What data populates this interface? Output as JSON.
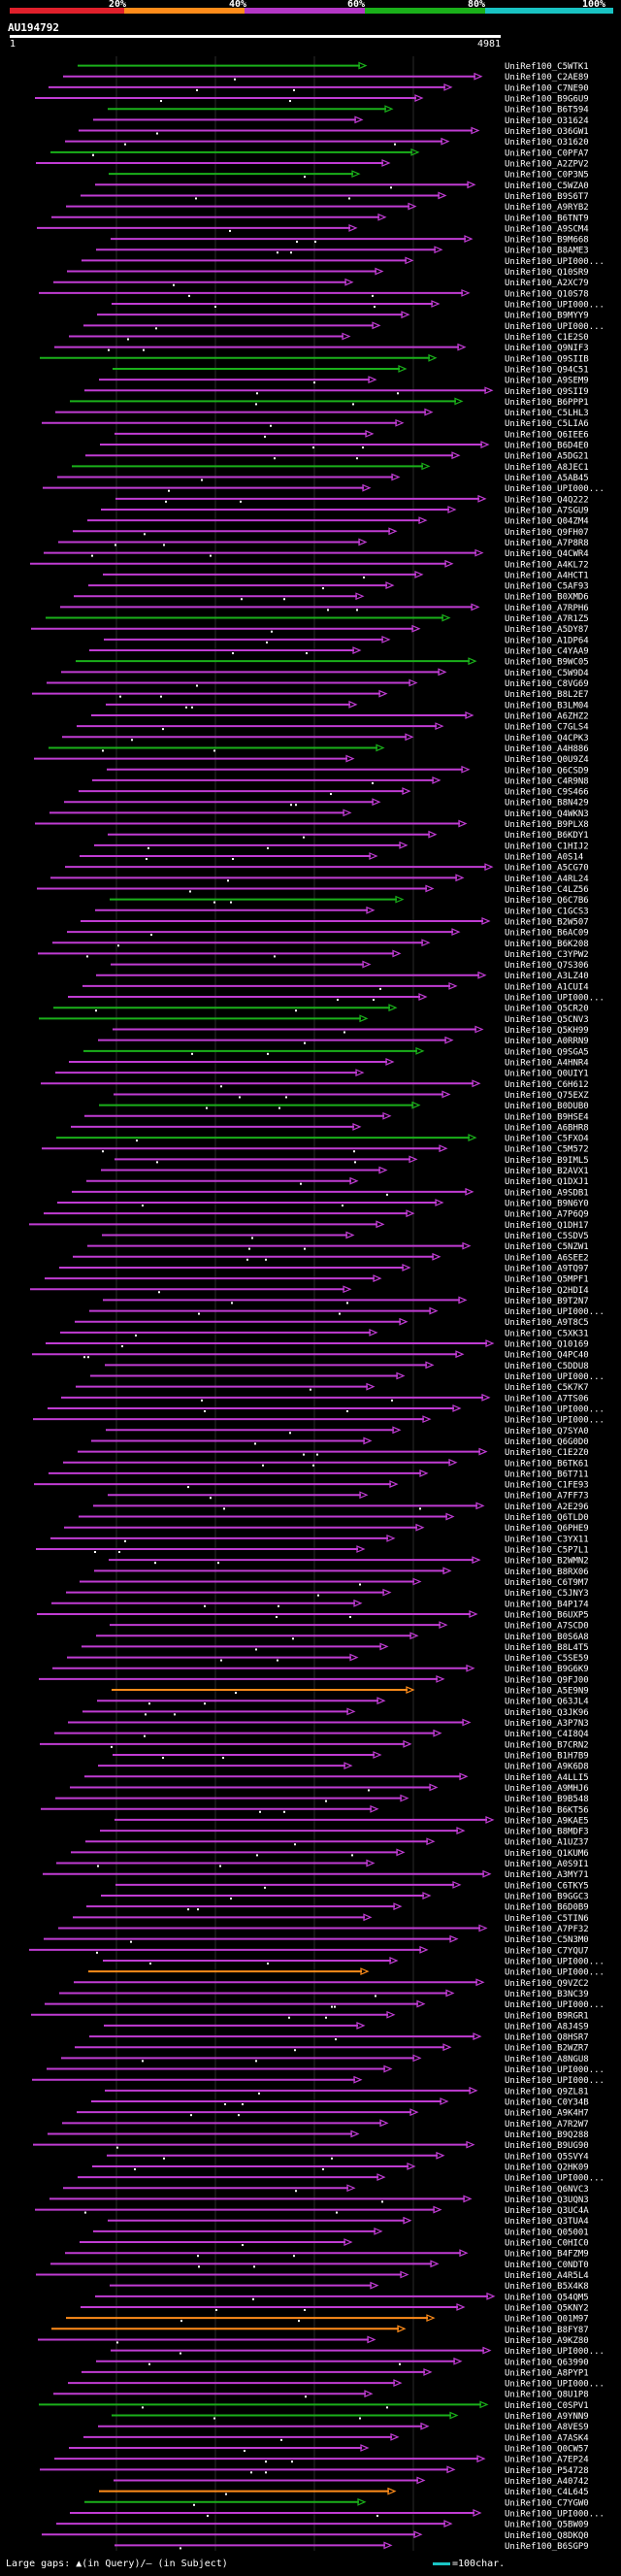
{
  "legend": {
    "labels": [
      "20%",
      "40%",
      "60%",
      "80%",
      "100%"
    ],
    "colors": [
      "#e0202b",
      "#ff8c1a",
      "#b437c6",
      "#1ab01a",
      "#19c3c3"
    ]
  },
  "query": {
    "id": "AU194792",
    "start": "1",
    "end": "4981"
  },
  "hits": [
    {
      "label": "UniRef100_C5WTK1",
      "color": "green"
    },
    {
      "label": "UniRef100_C2AE89",
      "color": "magenta"
    },
    {
      "label": "UniRef100_C7NE90",
      "color": "magenta"
    },
    {
      "label": "UniRef100_B9G6U9",
      "color": "magenta"
    },
    {
      "label": "UniRef100_B6T594",
      "color": "green"
    },
    {
      "label": "UniRef100_O31624",
      "color": "magenta"
    },
    {
      "label": "UniRef100_O36GW1",
      "color": "magenta"
    },
    {
      "label": "UniRef100_O31620",
      "color": "magenta"
    },
    {
      "label": "UniRef100_C0PFA7",
      "color": "green"
    },
    {
      "label": "UniRef100_A2ZPV2",
      "color": "magenta"
    },
    {
      "label": "UniRef100_C0P3N5",
      "color": "green"
    },
    {
      "label": "UniRef100_C5WZA0",
      "color": "magenta"
    },
    {
      "label": "UniRef100_B9S6T7",
      "color": "magenta"
    },
    {
      "label": "UniRef100_A9RYB2",
      "color": "magenta"
    },
    {
      "label": "UniRef100_B6TNT9",
      "color": "magenta"
    },
    {
      "label": "UniRef100_A9SCM4",
      "color": "magenta"
    },
    {
      "label": "UniRef100_B9M668",
      "color": "magenta"
    },
    {
      "label": "UniRef100_B8AME3",
      "color": "magenta"
    },
    {
      "label": "UniRef100_UPI000...",
      "color": "magenta"
    },
    {
      "label": "UniRef100_Q10SR9",
      "color": "magenta"
    },
    {
      "label": "UniRef100_A2XC79",
      "color": "magenta"
    },
    {
      "label": "UniRef100_Q10S78",
      "color": "magenta"
    },
    {
      "label": "UniRef100_UPI000...",
      "color": "magenta"
    },
    {
      "label": "UniRef100_B9MYY9",
      "color": "magenta"
    },
    {
      "label": "UniRef100_UPI000...",
      "color": "magenta"
    },
    {
      "label": "UniRef100_C1E2S0",
      "color": "magenta"
    },
    {
      "label": "UniRef100_Q9NIF3",
      "color": "magenta"
    },
    {
      "label": "UniRef100_Q9SIIB",
      "color": "green"
    },
    {
      "label": "UniRef100_Q94C51",
      "color": "green"
    },
    {
      "label": "UniRef100_A9SEM9",
      "color": "magenta"
    },
    {
      "label": "UniRef100_Q9SII9",
      "color": "magenta"
    },
    {
      "label": "UniRef100_B6PPP1",
      "color": "green"
    },
    {
      "label": "UniRef100_C5LHL3",
      "color": "magenta"
    },
    {
      "label": "UniRef100_C5LIA6",
      "color": "magenta"
    },
    {
      "label": "UniRef100_Q6IEE6",
      "color": "magenta"
    },
    {
      "label": "UniRef100_B6D4E0",
      "color": "magenta"
    },
    {
      "label": "UniRef100_A5DG21",
      "color": "magenta"
    },
    {
      "label": "UniRef100_A8JEC1",
      "color": "green"
    },
    {
      "label": "UniRef100_A5AB45",
      "color": "magenta"
    },
    {
      "label": "UniRef100_UPI000...",
      "color": "magenta"
    },
    {
      "label": "UniRef100_Q4Q222",
      "color": "magenta"
    },
    {
      "label": "UniRef100_A7SGU9",
      "color": "magenta"
    },
    {
      "label": "UniRef100_Q04ZM4",
      "color": "magenta"
    },
    {
      "label": "UniRef100_Q9FH07",
      "color": "magenta"
    },
    {
      "label": "UniRef100_A7P8R8",
      "color": "magenta"
    },
    {
      "label": "UniRef100_Q4CWR4",
      "color": "magenta"
    },
    {
      "label": "UniRef100_A4KL72",
      "color": "magenta"
    },
    {
      "label": "UniRef100_A4HCT1",
      "color": "magenta"
    },
    {
      "label": "UniRef100_C5AF93",
      "color": "magenta"
    },
    {
      "label": "UniRef100_B0XMD6",
      "color": "magenta"
    },
    {
      "label": "UniRef100_A7RPH6",
      "color": "magenta"
    },
    {
      "label": "UniRef100_A7R1Z5",
      "color": "green"
    },
    {
      "label": "UniRef100_A5DY87",
      "color": "magenta"
    },
    {
      "label": "UniRef100_A1DP64",
      "color": "magenta"
    },
    {
      "label": "UniRef100_C4YAA9",
      "color": "magenta"
    },
    {
      "label": "UniRef100_B9WC05",
      "color": "green"
    },
    {
      "label": "UniRef100_C5W9D4",
      "color": "magenta"
    },
    {
      "label": "UniRef100_C8VG69",
      "color": "magenta"
    },
    {
      "label": "UniRef100_B8L2E7",
      "color": "magenta"
    },
    {
      "label": "UniRef100_B3LM04",
      "color": "magenta"
    },
    {
      "label": "UniRef100_A6ZHZ2",
      "color": "magenta"
    },
    {
      "label": "UniRef100_C7GLS4",
      "color": "magenta"
    },
    {
      "label": "UniRef100_Q4CPK3",
      "color": "magenta"
    },
    {
      "label": "UniRef100_A4H886",
      "color": "green"
    },
    {
      "label": "UniRef100_Q0U9Z4",
      "color": "magenta"
    },
    {
      "label": "UniRef100_Q6CSD9",
      "color": "magenta"
    },
    {
      "label": "UniRef100_C4R9N8",
      "color": "magenta"
    },
    {
      "label": "UniRef100_C9S466",
      "color": "magenta"
    },
    {
      "label": "UniRef100_B8N429",
      "color": "magenta"
    },
    {
      "label": "UniRef100_Q4WKN3",
      "color": "magenta"
    },
    {
      "label": "UniRef100_B9PLX8",
      "color": "magenta"
    },
    {
      "label": "UniRef100_B6KDY1",
      "color": "magenta"
    },
    {
      "label": "UniRef100_C1HIJ2",
      "color": "magenta"
    },
    {
      "label": "UniRef100_A0S14",
      "color": "magenta"
    },
    {
      "label": "UniRef100_A5CG70",
      "color": "magenta"
    },
    {
      "label": "UniRef100_A4RL24",
      "color": "magenta"
    },
    {
      "label": "UniRef100_C4LZ56",
      "color": "magenta"
    },
    {
      "label": "UniRef100_Q6C7B6",
      "color": "green"
    },
    {
      "label": "UniRef100_C1GCS3",
      "color": "magenta"
    },
    {
      "label": "UniRef100_B2W507",
      "color": "magenta"
    },
    {
      "label": "UniRef100_B6AC09",
      "color": "magenta"
    },
    {
      "label": "UniRef100_B6K208",
      "color": "magenta"
    },
    {
      "label": "UniRef100_C3YPW2",
      "color": "magenta"
    },
    {
      "label": "UniRef100_Q7S306",
      "color": "magenta"
    },
    {
      "label": "UniRef100_A3LZ40",
      "color": "magenta"
    },
    {
      "label": "UniRef100_A1CUI4",
      "color": "magenta"
    },
    {
      "label": "UniRef100_UPI000...",
      "color": "magenta"
    },
    {
      "label": "UniRef100_Q5CR20",
      "color": "green"
    },
    {
      "label": "UniRef100_Q5CNV3",
      "color": "green"
    },
    {
      "label": "UniRef100_Q5KH99",
      "color": "magenta"
    },
    {
      "label": "UniRef100_A0RRN9",
      "color": "magenta"
    },
    {
      "label": "UniRef100_Q9SGA5",
      "color": "green"
    },
    {
      "label": "UniRef100_A4HNR4",
      "color": "magenta"
    },
    {
      "label": "UniRef100_Q0UIY1",
      "color": "magenta"
    },
    {
      "label": "UniRef100_C6H612",
      "color": "magenta"
    },
    {
      "label": "UniRef100_Q75EXZ",
      "color": "magenta"
    },
    {
      "label": "UniRef100_B0DUB0",
      "color": "green"
    },
    {
      "label": "UniRef100_B9HSE4",
      "color": "magenta"
    },
    {
      "label": "UniRef100_A6BHR8",
      "color": "magenta"
    },
    {
      "label": "UniRef100_C5FXO4",
      "color": "green"
    },
    {
      "label": "UniRef100_C5M572",
      "color": "magenta"
    },
    {
      "label": "UniRef100_B9IML5",
      "color": "magenta"
    },
    {
      "label": "UniRef100_B2AVX1",
      "color": "magenta"
    },
    {
      "label": "UniRef100_Q1DXJ1",
      "color": "magenta"
    },
    {
      "label": "UniRef100_A9SDB1",
      "color": "magenta"
    },
    {
      "label": "UniRef100_B9N6Y0",
      "color": "magenta"
    },
    {
      "label": "UniRef100_A7P6Q9",
      "color": "magenta"
    },
    {
      "label": "UniRef100_Q1DH17",
      "color": "magenta"
    },
    {
      "label": "UniRef100_C5SDV5",
      "color": "magenta"
    },
    {
      "label": "UniRef100_C5NZW1",
      "color": "magenta"
    },
    {
      "label": "UniRef100_A6SEE2",
      "color": "magenta"
    },
    {
      "label": "UniRef100_A9TQ97",
      "color": "magenta"
    },
    {
      "label": "UniRef100_Q5MPF1",
      "color": "magenta"
    },
    {
      "label": "UniRef100_Q2HDI4",
      "color": "magenta"
    },
    {
      "label": "UniRef100_B9T2N7",
      "color": "magenta"
    },
    {
      "label": "UniRef100_UPI000...",
      "color": "magenta"
    },
    {
      "label": "UniRef100_A9T8C5",
      "color": "magenta"
    },
    {
      "label": "UniRef100_C5XK31",
      "color": "magenta"
    },
    {
      "label": "UniRef100_Q10169",
      "color": "magenta"
    },
    {
      "label": "UniRef100_Q4PC40",
      "color": "magenta"
    },
    {
      "label": "UniRef100_C5DDU8",
      "color": "magenta"
    },
    {
      "label": "UniRef100_UPI000...",
      "color": "magenta"
    },
    {
      "label": "UniRef100_C5K7K7",
      "color": "magenta"
    },
    {
      "label": "UniRef100_A7TS06",
      "color": "magenta"
    },
    {
      "label": "UniRef100_UPI000...",
      "color": "magenta"
    },
    {
      "label": "UniRef100_UPI000...",
      "color": "magenta"
    },
    {
      "label": "UniRef100_Q7SYA0",
      "color": "magenta"
    },
    {
      "label": "UniRef100_Q6G0D0",
      "color": "magenta"
    },
    {
      "label": "UniRef100_C1E2Z0",
      "color": "magenta"
    },
    {
      "label": "UniRef100_B6TK61",
      "color": "magenta"
    },
    {
      "label": "UniRef100_B6T711",
      "color": "magenta"
    },
    {
      "label": "UniRef100_C1FE93",
      "color": "magenta"
    },
    {
      "label": "UniRef100_A7FF73",
      "color": "magenta"
    },
    {
      "label": "UniRef100_A2E296",
      "color": "magenta"
    },
    {
      "label": "UniRef100_Q6TLD0",
      "color": "magenta"
    },
    {
      "label": "UniRef100_Q6PHE9",
      "color": "magenta"
    },
    {
      "label": "UniRef100_C3YX11",
      "color": "magenta"
    },
    {
      "label": "UniRef100_C5P7L1",
      "color": "magenta"
    },
    {
      "label": "UniRef100_B2WMN2",
      "color": "magenta"
    },
    {
      "label": "UniRef100_B8RX06",
      "color": "magenta"
    },
    {
      "label": "UniRef100_C6T9M7",
      "color": "magenta"
    },
    {
      "label": "UniRef100_C5JNY3",
      "color": "magenta"
    },
    {
      "label": "UniRef100_B4P174",
      "color": "magenta"
    },
    {
      "label": "UniRef100_B6UXP5",
      "color": "magenta"
    },
    {
      "label": "UniRef100_A7SCD0",
      "color": "magenta"
    },
    {
      "label": "UniRef100_B0S6A8",
      "color": "magenta"
    },
    {
      "label": "UniRef100_B8L4T5",
      "color": "magenta"
    },
    {
      "label": "UniRef100_C5SE59",
      "color": "magenta"
    },
    {
      "label": "UniRef100_B9G6K9",
      "color": "magenta"
    },
    {
      "label": "UniRef100_Q9FJ00",
      "color": "magenta"
    },
    {
      "label": "UniRef100_A5E9N9",
      "color": "orange"
    },
    {
      "label": "UniRef100_Q63JL4",
      "color": "magenta"
    },
    {
      "label": "UniRef100_Q3JK96",
      "color": "magenta"
    },
    {
      "label": "UniRef100_A3P7N3",
      "color": "magenta"
    },
    {
      "label": "UniRef100_C4I8Q4",
      "color": "magenta"
    },
    {
      "label": "UniRef100_B7CRN2",
      "color": "magenta"
    },
    {
      "label": "UniRef100_B1H7B9",
      "color": "magenta"
    },
    {
      "label": "UniRef100_A9K6D8",
      "color": "magenta"
    },
    {
      "label": "UniRef100_A4LLI5",
      "color": "magenta"
    },
    {
      "label": "UniRef100_A9MHJ6",
      "color": "magenta"
    },
    {
      "label": "UniRef100_B9B548",
      "color": "magenta"
    },
    {
      "label": "UniRef100_B6KT56",
      "color": "magenta"
    },
    {
      "label": "UniRef100_A9KAE5",
      "color": "magenta"
    },
    {
      "label": "UniRef100_B8MDF3",
      "color": "magenta"
    },
    {
      "label": "UniRef100_A1UZ37",
      "color": "magenta"
    },
    {
      "label": "UniRef100_Q1KUM6",
      "color": "magenta"
    },
    {
      "label": "UniRef100_A0S9I1",
      "color": "magenta"
    },
    {
      "label": "UniRef100_A3MY71",
      "color": "magenta"
    },
    {
      "label": "UniRef100_C6TKY5",
      "color": "magenta"
    },
    {
      "label": "UniRef100_B9GGC3",
      "color": "magenta"
    },
    {
      "label": "UniRef100_B6D0B9",
      "color": "magenta"
    },
    {
      "label": "UniRef100_C5TIN6",
      "color": "magenta"
    },
    {
      "label": "UniRef100_A7PF32",
      "color": "magenta"
    },
    {
      "label": "UniRef100_C5N3M0",
      "color": "magenta"
    },
    {
      "label": "UniRef100_C7YQU7",
      "color": "magenta"
    },
    {
      "label": "UniRef100_UPI000...",
      "color": "magenta"
    },
    {
      "label": "UniRef100_UPI000...",
      "color": "orange"
    },
    {
      "label": "UniRef100_Q9VZC2",
      "color": "magenta"
    },
    {
      "label": "UniRef100_B3NC39",
      "color": "magenta"
    },
    {
      "label": "UniRef100_UPI000...",
      "color": "magenta"
    },
    {
      "label": "UniRef100_B9RGR1",
      "color": "magenta"
    },
    {
      "label": "UniRef100_A8J4S9",
      "color": "magenta"
    },
    {
      "label": "UniRef100_Q8HSR7",
      "color": "magenta"
    },
    {
      "label": "UniRef100_B2WZR7",
      "color": "magenta"
    },
    {
      "label": "UniRef100_A8NGU8",
      "color": "magenta"
    },
    {
      "label": "UniRef100_UPI000...",
      "color": "magenta"
    },
    {
      "label": "UniRef100_UPI000...",
      "color": "magenta"
    },
    {
      "label": "UniRef100_Q9ZL81",
      "color": "magenta"
    },
    {
      "label": "UniRef100_C0Y34B",
      "color": "magenta"
    },
    {
      "label": "UniRef100_A9K4H7",
      "color": "magenta"
    },
    {
      "label": "UniRef100_A7R2W7",
      "color": "magenta"
    },
    {
      "label": "UniRef100_B9Q288",
      "color": "magenta"
    },
    {
      "label": "UniRef100_B9UG90",
      "color": "magenta"
    },
    {
      "label": "UniRef100_Q5SVY4",
      "color": "magenta"
    },
    {
      "label": "UniRef100_Q2HK09",
      "color": "magenta"
    },
    {
      "label": "UniRef100_UPI000...",
      "color": "magenta"
    },
    {
      "label": "UniRef100_Q6NVC3",
      "color": "magenta"
    },
    {
      "label": "UniRef100_Q3UQN3",
      "color": "magenta"
    },
    {
      "label": "UniRef100_Q3UC4A",
      "color": "magenta"
    },
    {
      "label": "UniRef100_Q3TUA4",
      "color": "magenta"
    },
    {
      "label": "UniRef100_Q05001",
      "color": "magenta"
    },
    {
      "label": "UniRef100_C0HIC0",
      "color": "magenta"
    },
    {
      "label": "UniRef100_B4FZM9",
      "color": "magenta"
    },
    {
      "label": "UniRef100_C0NDT0",
      "color": "magenta"
    },
    {
      "label": "UniRef100_A4R5L4",
      "color": "magenta"
    },
    {
      "label": "UniRef100_B5X4K8",
      "color": "magenta"
    },
    {
      "label": "UniRef100_Q54QM5",
      "color": "magenta"
    },
    {
      "label": "UniRef100_Q5KNY2",
      "color": "magenta"
    },
    {
      "label": "UniRef100_Q01M97",
      "color": "orange"
    },
    {
      "label": "UniRef100_B8FY87",
      "color": "orange"
    },
    {
      "label": "UniRef100_A9KZ80",
      "color": "magenta"
    },
    {
      "label": "UniRef100_UPI000...",
      "color": "magenta"
    },
    {
      "label": "UniRef100_Q63990",
      "color": "magenta"
    },
    {
      "label": "UniRef100_A8PYP1",
      "color": "magenta"
    },
    {
      "label": "UniRef100_UPI000...",
      "color": "magenta"
    },
    {
      "label": "UniRef100_Q8U1P8",
      "color": "magenta"
    },
    {
      "label": "UniRef100_C0SPV1",
      "color": "green"
    },
    {
      "label": "UniRef100_A9YNN9",
      "color": "green"
    },
    {
      "label": "UniRef100_A8VES9",
      "color": "magenta"
    },
    {
      "label": "UniRef100_A7ASK4",
      "color": "magenta"
    },
    {
      "label": "UniRef100_Q0CW57",
      "color": "magenta"
    },
    {
      "label": "UniRef100_A7EP24",
      "color": "magenta"
    },
    {
      "label": "UniRef100_P54728",
      "color": "magenta"
    },
    {
      "label": "UniRef100_A40742",
      "color": "magenta"
    },
    {
      "label": "UniRef100_C4L645",
      "color": "orange"
    },
    {
      "label": "UniRef100_C7YGW0",
      "color": "green"
    },
    {
      "label": "UniRef100_UPI000...",
      "color": "magenta"
    },
    {
      "label": "UniRef100_Q5BW09",
      "color": "magenta"
    },
    {
      "label": "UniRef100_Q8DKQ0",
      "color": "magenta"
    },
    {
      "label": "UniRef100_B6SGP9",
      "color": "magenta"
    }
  ],
  "footer": {
    "note": "Large gaps: ▲(in Query)/– (in Subject)",
    "scale_label": "=100char."
  }
}
